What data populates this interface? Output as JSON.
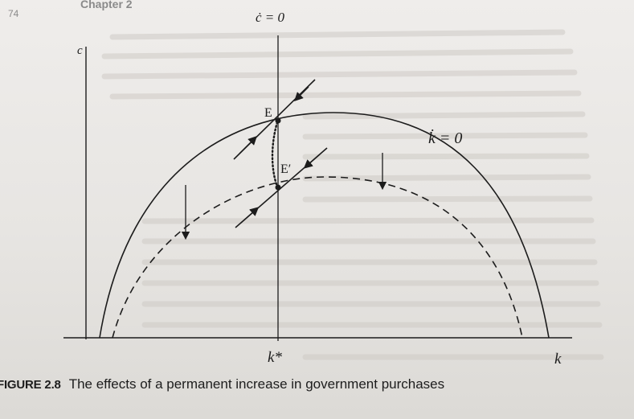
{
  "header": {
    "page_number": "74",
    "chapter": "Chapter 2"
  },
  "figure": {
    "axis_y_label": "c",
    "axis_x_label": "k",
    "kstar_label": "k*",
    "c_dot_label": "ċ = 0",
    "k_dot_label": "k̇ = 0",
    "point_E_label": "E",
    "point_E_prime_label": "E′"
  },
  "caption": {
    "figure_label": "FIGURE 2.8",
    "text": "The effects of a permanent increase in government purchases"
  },
  "colors": {
    "ink": "#1c1c1c",
    "paper": "#ecebe8"
  }
}
